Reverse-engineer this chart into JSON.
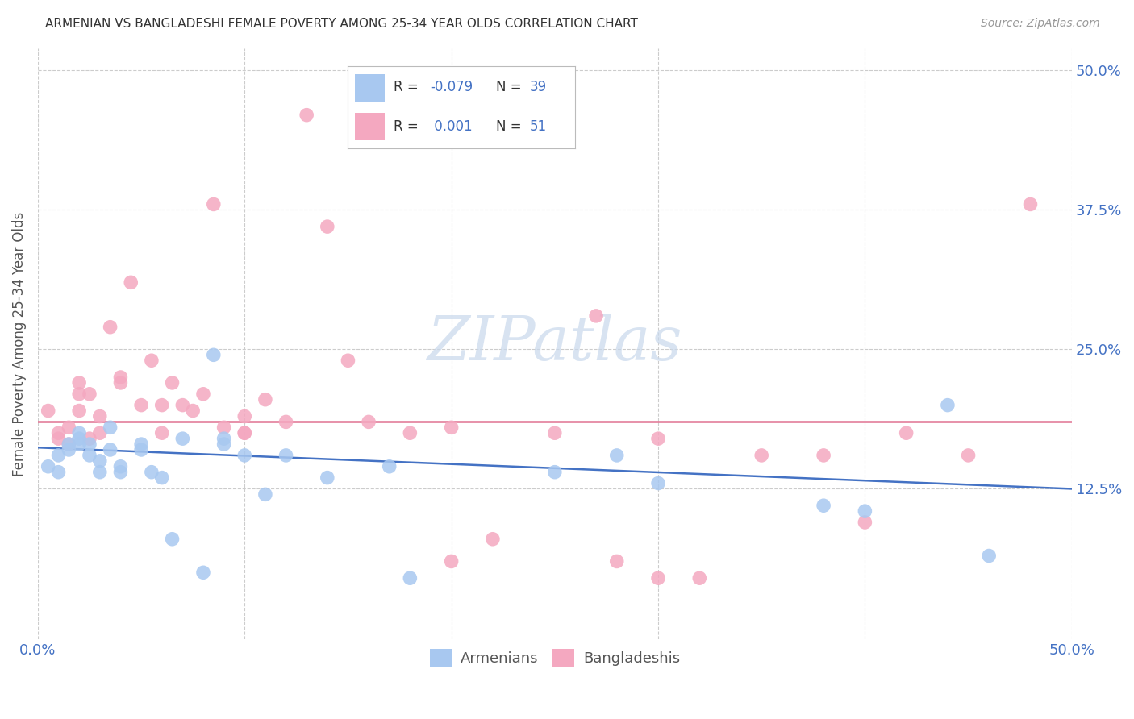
{
  "title": "ARMENIAN VS BANGLADESHI FEMALE POVERTY AMONG 25-34 YEAR OLDS CORRELATION CHART",
  "source": "Source: ZipAtlas.com",
  "ylabel": "Female Poverty Among 25-34 Year Olds",
  "xlim": [
    0,
    50
  ],
  "ylim": [
    -1,
    52
  ],
  "yticks": [
    12.5,
    25.0,
    37.5,
    50.0
  ],
  "ytick_labels": [
    "12.5%",
    "25.0%",
    "37.5%",
    "50.0%"
  ],
  "armenian_R": -0.079,
  "armenian_N": 39,
  "bangladeshi_R": 0.001,
  "bangladeshi_N": 51,
  "armenian_color": "#a8c8f0",
  "bangladeshi_color": "#f4a8c0",
  "armenian_line_color": "#4472c4",
  "bangladeshi_line_color": "#e07090",
  "background_color": "#ffffff",
  "grid_color": "#cccccc",
  "axis_label_color": "#4472c4",
  "armenians_x": [
    0.5,
    1.0,
    1.0,
    1.5,
    1.5,
    2.0,
    2.0,
    2.0,
    2.5,
    2.5,
    3.0,
    3.0,
    3.5,
    3.5,
    4.0,
    4.0,
    5.0,
    5.0,
    5.5,
    6.0,
    6.5,
    7.0,
    8.0,
    8.5,
    9.0,
    9.0,
    10.0,
    11.0,
    12.0,
    14.0,
    17.0,
    18.0,
    25.0,
    28.0,
    30.0,
    38.0,
    40.0,
    44.0,
    46.0
  ],
  "armenians_y": [
    14.5,
    15.5,
    14.0,
    16.5,
    16.0,
    17.5,
    17.0,
    16.5,
    16.5,
    15.5,
    15.0,
    14.0,
    18.0,
    16.0,
    14.0,
    14.5,
    16.0,
    16.5,
    14.0,
    13.5,
    8.0,
    17.0,
    5.0,
    24.5,
    17.0,
    16.5,
    15.5,
    12.0,
    15.5,
    13.5,
    14.5,
    4.5,
    14.0,
    15.5,
    13.0,
    11.0,
    10.5,
    20.0,
    6.5
  ],
  "bangladeshis_x": [
    0.5,
    1.0,
    1.0,
    1.5,
    1.5,
    2.0,
    2.0,
    2.0,
    2.5,
    2.5,
    3.0,
    3.0,
    3.5,
    4.0,
    4.0,
    4.5,
    5.0,
    5.5,
    6.0,
    6.0,
    6.5,
    7.0,
    7.5,
    8.0,
    8.5,
    9.0,
    10.0,
    10.0,
    10.0,
    11.0,
    12.0,
    13.0,
    14.0,
    15.0,
    16.0,
    18.0,
    20.0,
    20.0,
    22.0,
    25.0,
    27.0,
    28.0,
    30.0,
    30.0,
    32.0,
    35.0,
    38.0,
    40.0,
    42.0,
    45.0,
    48.0
  ],
  "bangladeshis_y": [
    19.5,
    17.0,
    17.5,
    16.5,
    18.0,
    21.0,
    22.0,
    19.5,
    17.0,
    21.0,
    19.0,
    17.5,
    27.0,
    22.5,
    22.0,
    31.0,
    20.0,
    24.0,
    20.0,
    17.5,
    22.0,
    20.0,
    19.5,
    21.0,
    38.0,
    18.0,
    17.5,
    19.0,
    17.5,
    20.5,
    18.5,
    46.0,
    36.0,
    24.0,
    18.5,
    17.5,
    18.0,
    6.0,
    8.0,
    17.5,
    28.0,
    6.0,
    17.0,
    4.5,
    4.5,
    15.5,
    15.5,
    9.5,
    17.5,
    15.5,
    38.0
  ],
  "armenian_trend_x": [
    0,
    50
  ],
  "armenian_trend_y": [
    16.2,
    12.5
  ],
  "bangladeshi_trend_y": 18.5,
  "watermark_text": "ZIPatlas",
  "watermark_color": "#c8d8ec",
  "watermark_fontsize": 55
}
